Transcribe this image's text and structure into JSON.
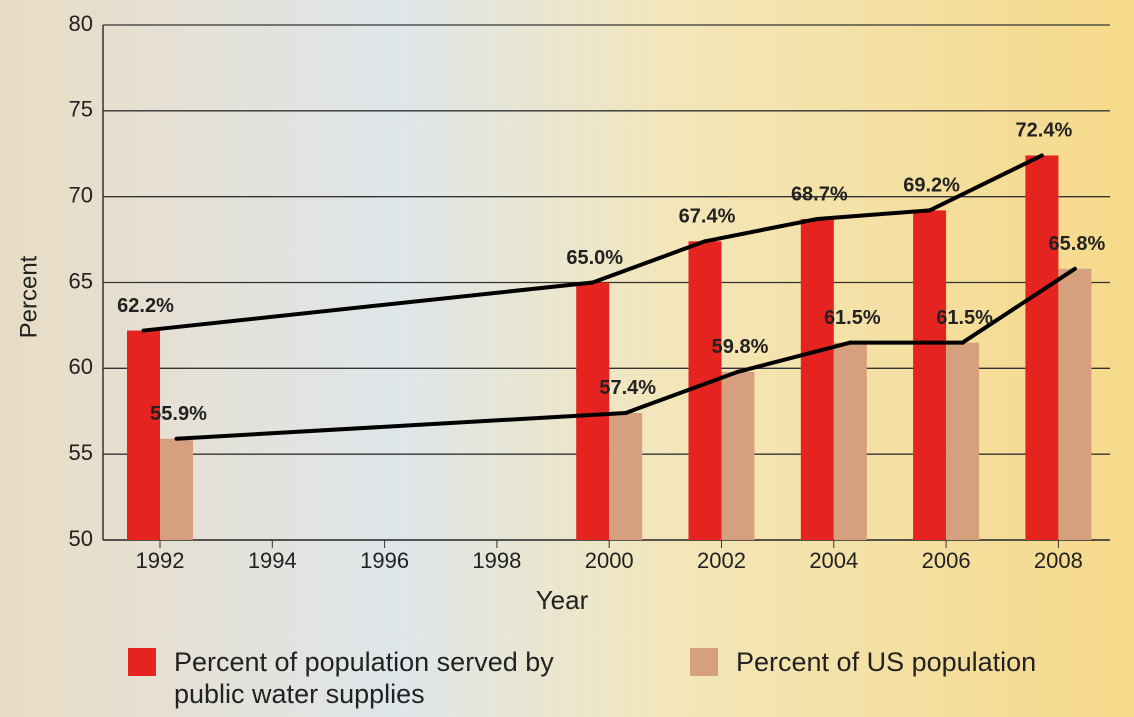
{
  "chart_data": {
    "type": "bar",
    "xlabel": "Year",
    "ylabel": "Percent",
    "categories": [
      "1992",
      "1994",
      "1996",
      "1998",
      "2000",
      "2002",
      "2004",
      "2006",
      "2008"
    ],
    "series": [
      {
        "name": "Percent of population served by public water supplies",
        "color": "#e52420",
        "values": [
          62.2,
          null,
          null,
          null,
          65.0,
          67.4,
          68.7,
          69.2,
          72.4
        ],
        "value_labels": [
          "62.2%",
          null,
          null,
          null,
          "65.0%",
          "67.4%",
          "68.7%",
          "69.2%",
          "72.4%"
        ]
      },
      {
        "name": "Percent of US population",
        "color": "#d6a07e",
        "values": [
          55.9,
          null,
          null,
          null,
          57.4,
          59.8,
          61.5,
          61.5,
          65.8
        ],
        "value_labels": [
          "55.9%",
          null,
          null,
          null,
          "57.4%",
          "59.8%",
          "61.5%",
          "61.5%",
          "65.8%"
        ]
      }
    ],
    "ylim": [
      50,
      80
    ],
    "yticks": [
      50,
      55,
      60,
      65,
      70,
      75,
      80
    ],
    "grid": true,
    "trend_line": true
  }
}
